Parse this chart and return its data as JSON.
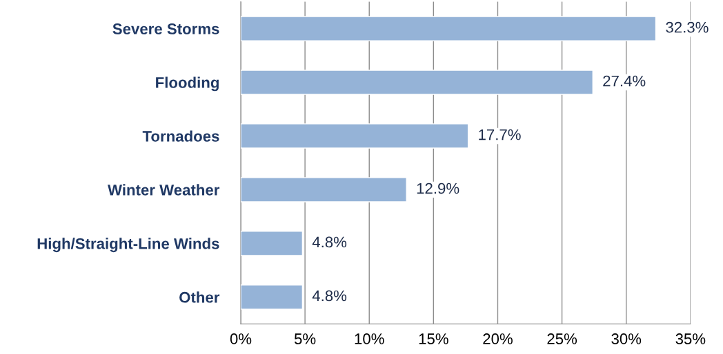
{
  "chart_data": {
    "type": "bar",
    "orientation": "horizontal",
    "categories": [
      "Severe Storms",
      "Flooding",
      "Tornadoes",
      "Winter Weather",
      "High/Straight-Line Winds",
      "Other"
    ],
    "values": [
      32.3,
      27.4,
      17.7,
      12.9,
      4.8,
      4.8
    ],
    "value_labels": [
      "32.3%",
      "27.4%",
      "17.7%",
      "12.9%",
      "4.8%",
      "4.8%"
    ],
    "color": "#95b3d7",
    "xlim": [
      0,
      35
    ],
    "xticks": [
      {
        "value": 0,
        "label": "0%"
      },
      {
        "value": 5,
        "label": "5%"
      },
      {
        "value": 10,
        "label": "10%"
      },
      {
        "value": 15,
        "label": "15%"
      },
      {
        "value": 20,
        "label": "20%"
      },
      {
        "value": 25,
        "label": "25%"
      },
      {
        "value": 30,
        "label": "30%"
      },
      {
        "value": 35,
        "label": "35%"
      }
    ],
    "grid": "x",
    "legend": false
  }
}
